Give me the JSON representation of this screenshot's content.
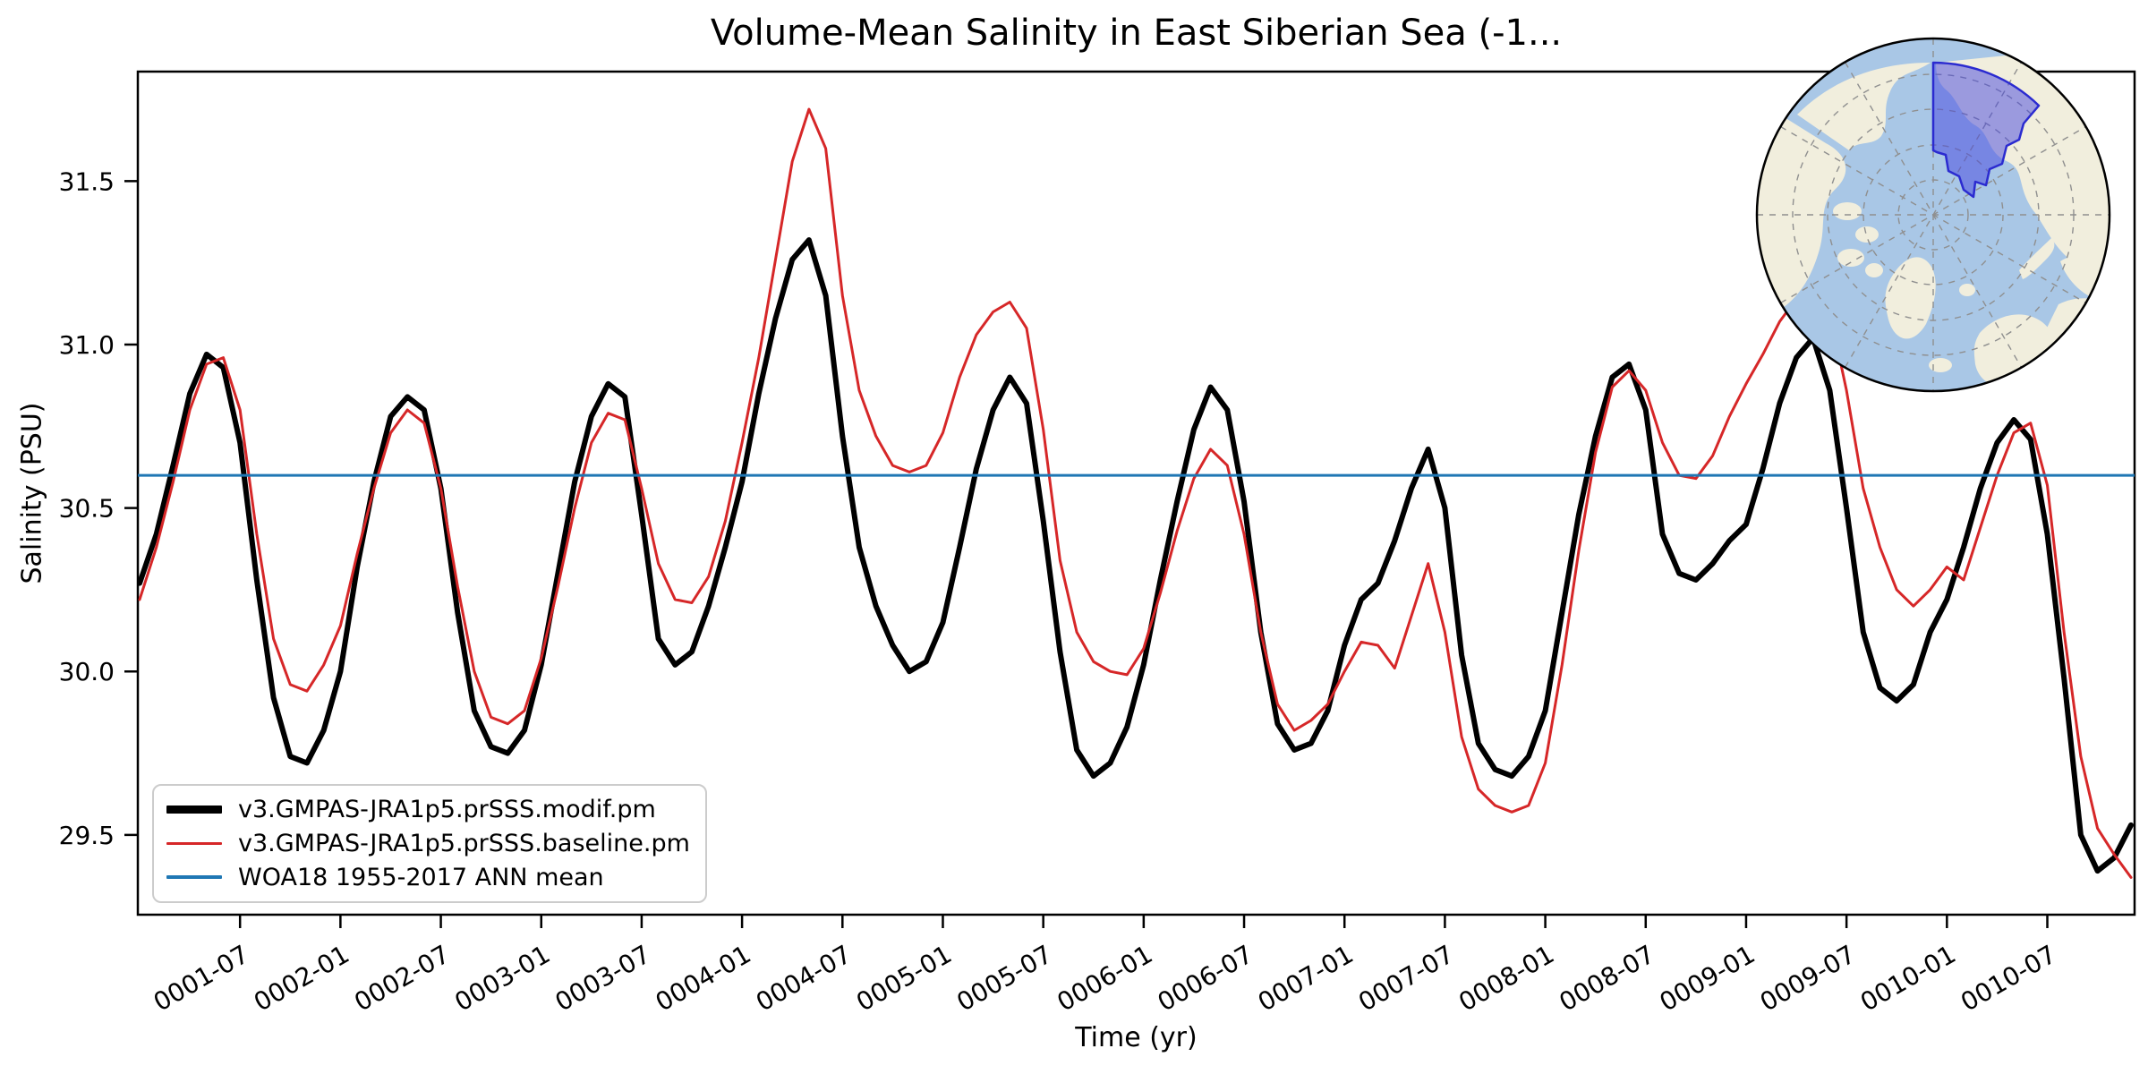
{
  "chart_data": {
    "type": "line",
    "title": "Volume-Mean Salinity in East Siberian Sea (-1...",
    "xlabel": "Time (yr)",
    "ylabel": "Salinity (PSU)",
    "ylim": [
      29.256,
      31.835
    ],
    "yticks": [
      29.5,
      30.0,
      30.5,
      31.0,
      31.5
    ],
    "grid": false,
    "legend_position": "lower left",
    "x_start": "0001-01",
    "x_end": "0010-12",
    "x_tick_labels": [
      "0001-07",
      "0002-01",
      "0002-07",
      "0003-01",
      "0003-07",
      "0004-01",
      "0004-07",
      "0005-01",
      "0005-07",
      "0006-01",
      "0006-07",
      "0007-01",
      "0007-07",
      "0008-01",
      "0008-07",
      "0009-01",
      "0009-07",
      "0010-01",
      "0010-07"
    ],
    "series": [
      {
        "name": "v3.GMPAS-JRA1p5.prSSS.modif.pm",
        "color": "#000000",
        "width": 6,
        "values": [
          30.27,
          30.42,
          30.63,
          30.85,
          30.97,
          30.93,
          30.7,
          30.28,
          29.92,
          29.74,
          29.72,
          29.82,
          30.0,
          30.32,
          30.58,
          30.78,
          30.84,
          30.8,
          30.56,
          30.18,
          29.88,
          29.77,
          29.75,
          29.82,
          30.02,
          30.3,
          30.58,
          30.78,
          30.88,
          30.84,
          30.48,
          30.1,
          30.02,
          30.06,
          30.2,
          30.38,
          30.58,
          30.85,
          31.08,
          31.26,
          31.32,
          31.15,
          30.72,
          30.38,
          30.2,
          30.08,
          30.0,
          30.03,
          30.15,
          30.38,
          30.62,
          30.8,
          30.9,
          30.82,
          30.46,
          30.06,
          29.76,
          29.68,
          29.72,
          29.83,
          30.02,
          30.28,
          30.52,
          30.74,
          30.87,
          30.8,
          30.52,
          30.12,
          29.84,
          29.76,
          29.78,
          29.88,
          30.08,
          30.22,
          30.27,
          30.4,
          30.56,
          30.68,
          30.5,
          30.05,
          29.78,
          29.7,
          29.68,
          29.74,
          29.88,
          30.18,
          30.48,
          30.72,
          30.9,
          30.94,
          30.8,
          30.42,
          30.3,
          30.28,
          30.33,
          30.4,
          30.45,
          30.62,
          30.82,
          30.96,
          31.02,
          30.86,
          30.5,
          30.12,
          29.95,
          29.91,
          29.96,
          30.12,
          30.22,
          30.38,
          30.56,
          30.7,
          30.77,
          30.71,
          30.42,
          29.98,
          29.5,
          29.39,
          29.43,
          29.53
        ]
      },
      {
        "name": "v3.GMPAS-JRA1p5.prSSS.baseline.pm",
        "color": "#d62728",
        "width": 3,
        "values": [
          30.22,
          30.38,
          30.58,
          30.8,
          30.94,
          30.96,
          30.8,
          30.42,
          30.1,
          29.96,
          29.94,
          30.02,
          30.14,
          30.36,
          30.56,
          30.73,
          30.8,
          30.76,
          30.56,
          30.26,
          30.0,
          29.86,
          29.84,
          29.88,
          30.04,
          30.26,
          30.5,
          30.7,
          30.79,
          30.77,
          30.56,
          30.33,
          30.22,
          30.21,
          30.29,
          30.46,
          30.7,
          30.96,
          31.26,
          31.56,
          31.72,
          31.6,
          31.15,
          30.86,
          30.72,
          30.63,
          30.61,
          30.63,
          30.73,
          30.9,
          31.03,
          31.1,
          31.13,
          31.05,
          30.74,
          30.34,
          30.12,
          30.03,
          30.0,
          29.99,
          30.07,
          30.24,
          30.43,
          30.59,
          30.68,
          30.63,
          30.42,
          30.12,
          29.9,
          29.82,
          29.85,
          29.9,
          30.0,
          30.09,
          30.08,
          30.01,
          30.17,
          30.33,
          30.12,
          29.8,
          29.64,
          29.59,
          29.57,
          29.59,
          29.72,
          30.02,
          30.37,
          30.67,
          30.87,
          30.92,
          30.86,
          30.7,
          30.6,
          30.59,
          30.66,
          30.78,
          30.88,
          30.97,
          31.07,
          31.14,
          31.18,
          31.1,
          30.86,
          30.56,
          30.38,
          30.25,
          30.2,
          30.25,
          30.32,
          30.28,
          30.44,
          30.6,
          30.73,
          30.76,
          30.57,
          30.12,
          29.74,
          29.52,
          29.44,
          29.37
        ]
      },
      {
        "name": "WOA18 1955-2017 ANN mean",
        "color": "#1f77b4",
        "width": 3,
        "constant": 30.6
      }
    ]
  },
  "inset_map": {
    "description_name": "arctic-north-pole-stereographic-inset",
    "ocean_color": "#a9c7e6",
    "land_color": "#f1eedd",
    "graticule_color": "#8f8f8f",
    "highlight_fill": "#4646e0",
    "highlight_border": "#2b2bd0",
    "border_color": "#000000"
  }
}
